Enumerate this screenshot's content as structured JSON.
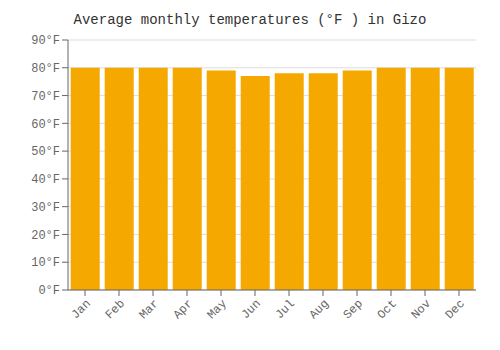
{
  "chart_data": {
    "type": "bar",
    "title": "Average monthly temperatures (°F ) in Gizo",
    "categories": [
      "Jan",
      "Feb",
      "Mar",
      "Apr",
      "May",
      "Jun",
      "Jul",
      "Aug",
      "Sep",
      "Oct",
      "Nov",
      "Dec"
    ],
    "values": [
      80,
      80,
      80,
      80,
      79,
      77,
      78,
      78,
      79,
      80,
      80,
      80
    ],
    "color": "#F5A800",
    "ylim": [
      0,
      90
    ],
    "yticks": [
      {
        "value": 0,
        "label": "0°F"
      },
      {
        "value": 10,
        "label": "10°F"
      },
      {
        "value": 20,
        "label": "20°F"
      },
      {
        "value": 30,
        "label": "30°F"
      },
      {
        "value": 40,
        "label": "40°F"
      },
      {
        "value": 50,
        "label": "50°F"
      },
      {
        "value": 60,
        "label": "60°F"
      },
      {
        "value": 70,
        "label": "70°F"
      },
      {
        "value": 80,
        "label": "80°F"
      },
      {
        "value": 90,
        "label": "90°F"
      }
    ],
    "grid": true
  }
}
